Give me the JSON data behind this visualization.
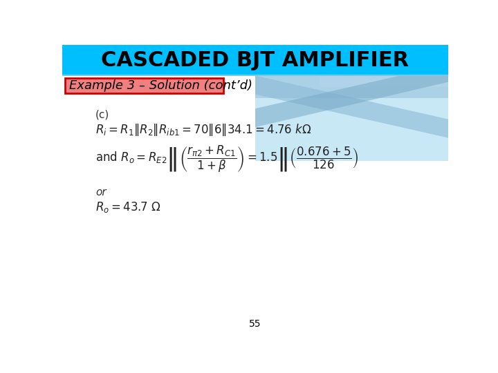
{
  "title": "CASCADED BJT AMPLIFIER",
  "title_bg": "#00BFFF",
  "subtitle": "Example 3 – Solution (cont’d)",
  "subtitle_bg": "#F08080",
  "subtitle_border": "#CC0000",
  "page_number": "55",
  "bg_color": "#FFFFFF",
  "title_fontsize": 22,
  "subtitle_fontsize": 13,
  "page_num_fontsize": 10,
  "decorative_color": "#87CEEB"
}
